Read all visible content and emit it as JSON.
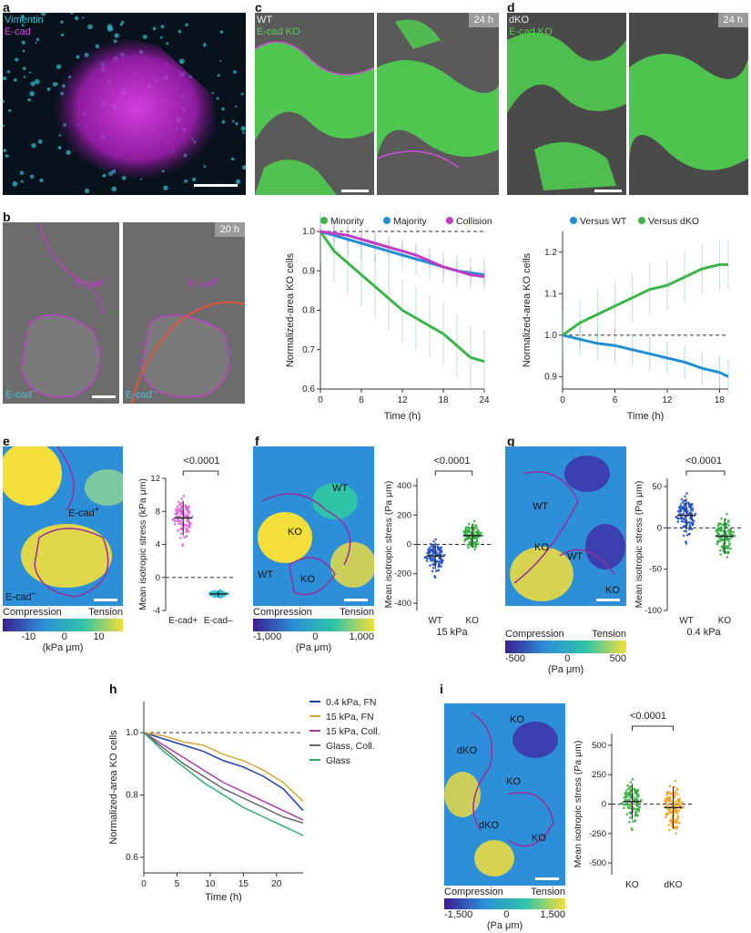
{
  "panels": {
    "a": {
      "label": "a",
      "legend": [
        "Vimentin",
        "E-cad"
      ]
    },
    "b": {
      "label": "b",
      "time": "20 h",
      "ecad_pos": "E-cad",
      "ecad_neg": "E-cad",
      "sup_pos": "+",
      "sup_neg": "–"
    },
    "c": {
      "label": "c",
      "legend": [
        "WT",
        "E-cad KO"
      ],
      "time": "24 h"
    },
    "d": {
      "label": "d",
      "legend": [
        "dKO",
        "E-cad KO"
      ],
      "time": "24 h"
    },
    "e": {
      "label": "e",
      "ecad_pos": "E-cad",
      "ecad_neg": "E-cad",
      "sup_pos": "+",
      "sup_neg": "–",
      "pvalue": "<0.0001",
      "colorbar": {
        "left": "Compression",
        "right": "Tension",
        "ticks": [
          "-10",
          "0",
          "10"
        ],
        "unit": "(kPa μm)"
      }
    },
    "f": {
      "label": "f",
      "regions": [
        "WT",
        "KO",
        "WT",
        "KO"
      ],
      "pvalue": "<0.0001",
      "substrate": "15 kPa",
      "colorbar": {
        "left": "Compression",
        "right": "Tension",
        "ticks": [
          "-1,000",
          "0",
          "1,000"
        ],
        "unit": "(Pa μm)"
      }
    },
    "g": {
      "label": "g",
      "regions": [
        "WT",
        "KO",
        "WT",
        "KO",
        "KO"
      ],
      "pvalue": "<0.0001",
      "substrate": "0.4 kPa",
      "colorbar": {
        "left": "Compression",
        "right": "Tension",
        "ticks": [
          "-500",
          "0",
          "500"
        ],
        "unit": "(Pa μm)"
      }
    },
    "h": {
      "label": "h"
    },
    "i": {
      "label": "i",
      "regions": [
        "KO",
        "dKO",
        "KO",
        "dKO",
        "KO"
      ],
      "pvalue": "<0.0001",
      "colorbar": {
        "left": "Compression",
        "right": "Tension",
        "ticks": [
          "-1,500",
          "0",
          "1,500"
        ],
        "unit": "(Pa μm)"
      }
    }
  },
  "colors": {
    "magenta": "#c13bc4",
    "cyan": "#19b6cf",
    "green": "#3cb54a",
    "blue": "#1f8fd6",
    "orange": "#f39c12",
    "red": "#e0553b"
  },
  "chart_data": [
    {
      "id": "c-plot",
      "type": "line",
      "xlabel": "Time (h)",
      "ylabel": "Normalized-area KO cells",
      "xlim": [
        0,
        24
      ],
      "ylim": [
        0.6,
        1.0
      ],
      "xticks": [
        0,
        6,
        12,
        18,
        24
      ],
      "yticks": [
        0.6,
        0.7,
        0.8,
        0.9,
        1.0
      ],
      "legend_position": "top",
      "x": [
        0,
        2,
        4,
        6,
        8,
        10,
        12,
        14,
        16,
        18,
        20,
        22,
        24
      ],
      "series": [
        {
          "name": "Minority",
          "color": "#3cb54a",
          "values": [
            1.0,
            0.95,
            0.92,
            0.89,
            0.86,
            0.83,
            0.8,
            0.78,
            0.76,
            0.74,
            0.71,
            0.68,
            0.67
          ],
          "err": 0.08
        },
        {
          "name": "Majority",
          "color": "#1f8fd6",
          "values": [
            1.0,
            0.99,
            0.98,
            0.97,
            0.96,
            0.95,
            0.94,
            0.93,
            0.92,
            0.91,
            0.9,
            0.895,
            0.89
          ],
          "err": 0.04
        },
        {
          "name": "Collision",
          "color": "#c13bc4",
          "values": [
            1.0,
            0.995,
            0.99,
            0.98,
            0.97,
            0.96,
            0.95,
            0.94,
            0.925,
            0.91,
            0.9,
            0.89,
            0.885
          ],
          "err": 0.02
        }
      ]
    },
    {
      "id": "d-plot",
      "type": "line",
      "xlabel": "Time (h)",
      "ylabel": "Normalized-area KO cells",
      "xlim": [
        0,
        19
      ],
      "ylim": [
        0.87,
        1.25
      ],
      "xticks": [
        0,
        6,
        12,
        18
      ],
      "yticks": [
        0.9,
        1.0,
        1.1,
        1.2
      ],
      "legend_position": "top",
      "x": [
        0,
        2,
        4,
        6,
        8,
        10,
        12,
        14,
        16,
        18,
        19
      ],
      "series": [
        {
          "name": "Versus WT",
          "color": "#1f8fd6",
          "values": [
            1.0,
            0.99,
            0.98,
            0.975,
            0.965,
            0.955,
            0.945,
            0.935,
            0.92,
            0.91,
            0.9
          ],
          "err": 0.04
        },
        {
          "name": "Versus dKO",
          "color": "#3cb54a",
          "values": [
            1.0,
            1.03,
            1.05,
            1.07,
            1.09,
            1.11,
            1.12,
            1.14,
            1.16,
            1.17,
            1.17
          ],
          "err": 0.06
        }
      ]
    },
    {
      "id": "e-scatter",
      "type": "scatter",
      "ylabel": "Mean isotropic stress (kPa μm)",
      "ylim": [
        -4,
        12
      ],
      "yticks": [
        -4,
        0,
        4,
        8,
        12
      ],
      "categories": [
        "E-cad+",
        "E-cad–"
      ],
      "colors": [
        "#e15fe0",
        "#3bbcd4"
      ],
      "means": [
        7.2,
        -2.0
      ],
      "spreads": [
        3.5,
        0.6
      ]
    },
    {
      "id": "f-scatter",
      "type": "scatter",
      "ylabel": "Mean isotropic stress (Pa μm)",
      "ylim": [
        -450,
        450
      ],
      "yticks": [
        -400,
        -200,
        0,
        200,
        400
      ],
      "categories": [
        "WT",
        "KO"
      ],
      "colors": [
        "#1f4ec9",
        "#2fae3a"
      ],
      "means": [
        -80,
        60
      ],
      "spreads": [
        150,
        130
      ]
    },
    {
      "id": "g-scatter",
      "type": "scatter",
      "ylabel": "Mean isotropic stress (Pa μm)",
      "ylim": [
        -100,
        60
      ],
      "yticks": [
        -100,
        -50,
        0,
        50
      ],
      "categories": [
        "WT",
        "KO"
      ],
      "colors": [
        "#1f4ec9",
        "#2fae3a"
      ],
      "means": [
        15,
        -10
      ],
      "spreads": [
        35,
        35
      ]
    },
    {
      "id": "h-plot",
      "type": "line",
      "xlabel": "Time (h)",
      "ylabel": "Normalized-area KO cells",
      "xlim": [
        0,
        24
      ],
      "ylim": [
        0.55,
        1.1
      ],
      "xticks": [
        0,
        5,
        10,
        15,
        20
      ],
      "yticks": [
        0.6,
        0.8,
        1.0
      ],
      "legend_position": "right",
      "x": [
        0,
        3,
        6,
        9,
        12,
        15,
        18,
        21,
        24
      ],
      "series": [
        {
          "name": "0.4 kPa, FN",
          "color": "#1f3fa8",
          "values": [
            1.0,
            0.98,
            0.96,
            0.94,
            0.91,
            0.89,
            0.86,
            0.82,
            0.75
          ]
        },
        {
          "name": "15 kPa, FN",
          "color": "#d4a93a",
          "values": [
            1.0,
            0.99,
            0.97,
            0.96,
            0.93,
            0.91,
            0.88,
            0.84,
            0.78
          ]
        },
        {
          "name": "15 kPa, Coll.",
          "color": "#b03aa3",
          "values": [
            1.0,
            0.96,
            0.92,
            0.88,
            0.84,
            0.81,
            0.78,
            0.75,
            0.72
          ]
        },
        {
          "name": "Glass, Coll.",
          "color": "#666666",
          "values": [
            1.0,
            0.95,
            0.9,
            0.86,
            0.82,
            0.79,
            0.76,
            0.73,
            0.71
          ]
        },
        {
          "name": "Glass",
          "color": "#2fae6a",
          "values": [
            1.0,
            0.94,
            0.89,
            0.84,
            0.8,
            0.76,
            0.73,
            0.7,
            0.67
          ]
        }
      ]
    },
    {
      "id": "i-scatter",
      "type": "scatter",
      "ylabel": "Mean isotropic stress (Pa μm)",
      "ylim": [
        -600,
        600
      ],
      "yticks": [
        -500,
        -250,
        0,
        250,
        500
      ],
      "categories": [
        "KO",
        "dKO"
      ],
      "colors": [
        "#2fae3a",
        "#f39c12"
      ],
      "means": [
        20,
        -30
      ],
      "spreads": [
        250,
        300
      ]
    }
  ]
}
